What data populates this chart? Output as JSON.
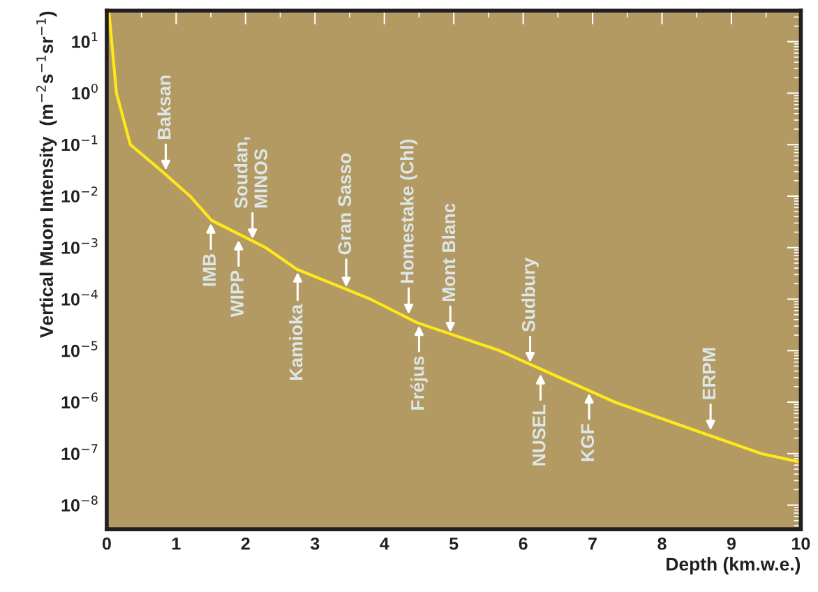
{
  "chart_data": {
    "type": "line",
    "xlabel": "Depth (km.w.e.)",
    "ylabel": "Vertical Muon Intensity  (m$^{−2}$s$^{−1}$sr$^{−1}$)",
    "x": [
      0.03,
      0.14,
      0.34,
      0.8,
      1.2,
      1.51,
      2.29,
      2.74,
      3.8,
      4.47,
      5.66,
      6.13,
      7.32,
      9.43,
      10
    ],
    "series": [
      {
        "color": "#ffe81a",
        "values": [
          40,
          1,
          0.1,
          0.03,
          0.01,
          0.0034,
          0.001,
          0.00038,
          0.0001,
          3.5e-05,
          1e-05,
          5.2e-06,
          1e-06,
          1e-07,
          6.8e-08
        ]
      }
    ],
    "log": "y",
    "xlim": [
      0,
      10
    ],
    "xticks": [
      0,
      1,
      2,
      3,
      4,
      5,
      6,
      7,
      8,
      9,
      10
    ],
    "ylim": [
      3.4e-09,
      40
    ],
    "yticks": [
      {
        "value": 1e-08,
        "label": "10$^{−8}$"
      },
      {
        "value": 1e-07,
        "label": "10$^{−7}$"
      },
      {
        "value": 1e-06,
        "label": "10$^{−6}$"
      },
      {
        "value": 1e-05,
        "label": "10$^{−5}$"
      },
      {
        "value": 0.0001,
        "label": "10$^{−4}$"
      },
      {
        "value": 0.001,
        "label": "10$^{−3}$"
      },
      {
        "value": 0.01,
        "label": "10$^{−2}$"
      },
      {
        "value": 0.1,
        "label": "10$^{−1}$"
      },
      {
        "value": 1,
        "label": "10$^{0}$"
      },
      {
        "value": 10,
        "label": "10$^{1}$"
      }
    ],
    "grid": false,
    "legend": false,
    "marker": "none",
    "line_style": "solid",
    "annotations": [
      {
        "text": "Baksan",
        "x": 0.85,
        "y": 0.028
      },
      {
        "text": "IMB",
        "x": 1.5,
        "y": 0.0034
      },
      {
        "text": "WIPP",
        "x": 1.9,
        "y": 0.0016
      },
      {
        "text": "Soudan,\nMINOS",
        "x": 2.1,
        "y": 0.0013
      },
      {
        "text": "Kamioka",
        "x": 2.75,
        "y": 0.00038
      },
      {
        "text": "Gran Sasso",
        "x": 3.45,
        "y": 0.00015
      },
      {
        "text": "Homestake (Chl)",
        "x": 4.35,
        "y": 4.5e-05
      },
      {
        "text": "Fréjus",
        "x": 4.5,
        "y": 3.5e-05
      },
      {
        "text": "Mont Blanc",
        "x": 4.95,
        "y": 2e-05
      },
      {
        "text": "Sudbury",
        "x": 6.1,
        "y": 5.2e-06
      },
      {
        "text": "NUSEL",
        "x": 6.25,
        "y": 4e-06
      },
      {
        "text": "KGF",
        "x": 6.95,
        "y": 1.7e-06
      },
      {
        "text": "ERPM",
        "x": 8.7,
        "y": 2.5e-07
      }
    ]
  }
}
